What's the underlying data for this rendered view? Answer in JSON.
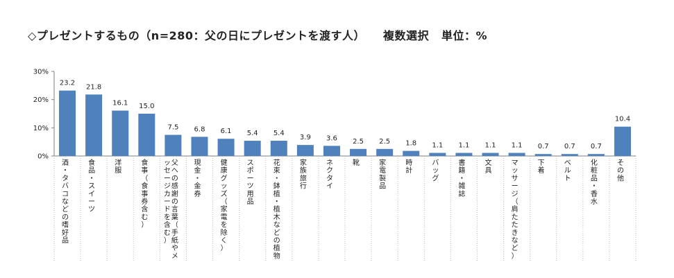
{
  "title": {
    "main": "◇プレゼントするもの（n=280：父の日にプレゼントを渡す人）",
    "selection": "複数選択",
    "unit": "単位：%"
  },
  "chart_data": {
    "type": "bar",
    "ylim": [
      0,
      30
    ],
    "yticks": [
      "0%",
      "10%",
      "20%",
      "30%"
    ],
    "grid": false,
    "bar_color": "#4F81BD",
    "categories": [
      "酒・タバコなどの嗜好品",
      "食品・スイーツ",
      "洋服",
      "食事（食事券含む）",
      "父への感謝の言葉（手紙やメッセージカードを含む）",
      "現金・金券",
      "健康グッズ（家電を除く）",
      "スポーツ用品",
      "花束・鉢植・植木などの植物",
      "家族旅行",
      "ネクタイ",
      "靴",
      "家電製品",
      "時計",
      "バッグ",
      "書籍・雑誌",
      "文具",
      "マッサージ（肩たたきなど）",
      "下着",
      "ベルト",
      "化粧品・香水",
      "その他"
    ],
    "values": [
      23.2,
      21.8,
      16.1,
      15.0,
      7.5,
      6.8,
      6.1,
      5.4,
      5.4,
      3.9,
      3.6,
      2.5,
      2.5,
      1.8,
      1.1,
      1.1,
      1.1,
      1.1,
      0.7,
      0.7,
      0.7,
      10.4
    ],
    "value_labels": [
      "23.2",
      "21.8",
      "16.1",
      "15.0",
      "7.5",
      "6.8",
      "6.1",
      "5.4",
      "5.4",
      "3.9",
      "3.6",
      "2.5",
      "2.5",
      "1.8",
      "1.1",
      "1.1",
      "1.1",
      "1.1",
      "0.7",
      "0.7",
      "0.7",
      "10.4"
    ]
  }
}
